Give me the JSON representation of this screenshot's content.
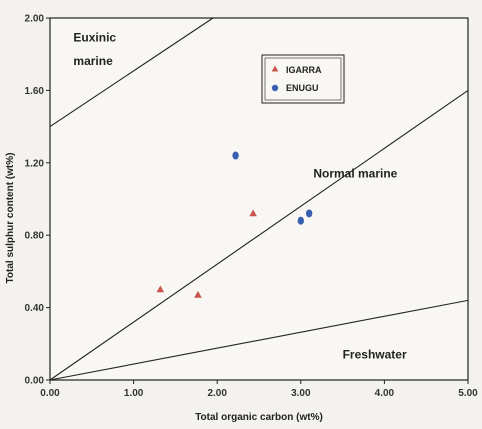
{
  "chart_data": {
    "type": "scatter",
    "xlabel": "Total organic carbon (wt%)",
    "ylabel": "Total sulphur content (wt%)",
    "xlim": [
      0,
      5
    ],
    "ylim": [
      0,
      2
    ],
    "x_ticks": [
      "0.00",
      "1.00",
      "2.00",
      "3.00",
      "4.00",
      "5.00"
    ],
    "y_ticks": [
      "0.00",
      "0.40",
      "0.80",
      "1.20",
      "1.60",
      "2.00"
    ],
    "grid": false,
    "legend_position": "top-center",
    "series": [
      {
        "name": "IGARRA",
        "marker": "triangle",
        "color": "#c9544a",
        "points": [
          {
            "x": 1.32,
            "y": 0.5
          },
          {
            "x": 1.77,
            "y": 0.47
          },
          {
            "x": 2.43,
            "y": 0.92
          }
        ]
      },
      {
        "name": "ENUGU",
        "marker": "circle",
        "color": "#3a5fb0",
        "points": [
          {
            "x": 2.22,
            "y": 1.24
          },
          {
            "x": 3.0,
            "y": 0.88
          },
          {
            "x": 3.1,
            "y": 0.92
          }
        ]
      }
    ],
    "boundary_lines": [
      {
        "name": "euxinic-boundary",
        "from": [
          0,
          1.4
        ],
        "to": [
          1.95,
          2.0
        ]
      },
      {
        "name": "normal-marine-line",
        "from": [
          0,
          0
        ],
        "to": [
          5,
          1.6
        ]
      },
      {
        "name": "freshwater-line",
        "from": [
          0,
          0
        ],
        "to": [
          5,
          0.44
        ]
      }
    ],
    "annotations": [
      {
        "text": "Euxinic",
        "x": 0.28,
        "y": 1.87
      },
      {
        "text": "marine",
        "x": 0.28,
        "y": 1.74
      },
      {
        "text": "Normal marine",
        "x": 3.15,
        "y": 1.12
      },
      {
        "text": "Freshwater",
        "x": 3.5,
        "y": 0.12
      }
    ]
  }
}
